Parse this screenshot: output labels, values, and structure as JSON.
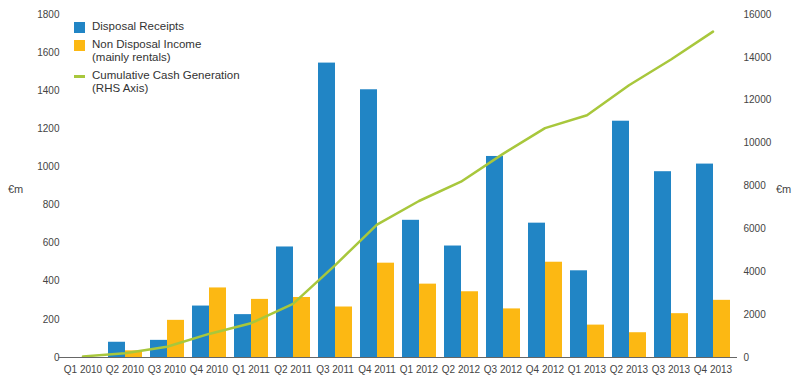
{
  "chart_data": {
    "type": "bar",
    "categories": [
      "Q1 2010",
      "Q2 2010",
      "Q3 2010",
      "Q4 2010",
      "Q1 2011",
      "Q2 2011",
      "Q3 2011",
      "Q4 2011",
      "Q1 2012",
      "Q2 2012",
      "Q3 2012",
      "Q4 2012",
      "Q1 2013",
      "Q2 2013",
      "Q3 2013",
      "Q4 2013"
    ],
    "series": [
      {
        "name": "Disposal Receipts",
        "type": "bar",
        "color": "#2185c5",
        "values": [
          0,
          80,
          90,
          270,
          225,
          580,
          1545,
          1405,
          720,
          585,
          1055,
          705,
          455,
          1240,
          975,
          1015
        ]
      },
      {
        "name": "Non Disposal Income\n(mainly rentals)",
        "type": "bar",
        "color": "#fcb813",
        "values": [
          0,
          35,
          195,
          365,
          305,
          315,
          265,
          495,
          385,
          345,
          255,
          500,
          170,
          130,
          230,
          300
        ]
      },
      {
        "name": "Cumulative Cash Generation\n(RHS Axis)",
        "type": "line",
        "axis": "y2",
        "color": "#a8c73c",
        "values": [
          50,
          200,
          500,
          1100,
          1600,
          2500,
          4300,
          6200,
          7300,
          8200,
          9500,
          10700,
          11300,
          12700,
          13900,
          15200
        ]
      }
    ],
    "ylabel": "€m",
    "y2label": "€m",
    "ylim": [
      0,
      1800
    ],
    "yticks": [
      0,
      200,
      400,
      600,
      800,
      1000,
      1200,
      1400,
      1600,
      1800
    ],
    "y2lim": [
      0,
      16000
    ],
    "y2ticks": [
      0,
      2000,
      4000,
      6000,
      8000,
      10000,
      12000,
      14000,
      16000
    ],
    "legend": "top-left",
    "grid": false
  }
}
